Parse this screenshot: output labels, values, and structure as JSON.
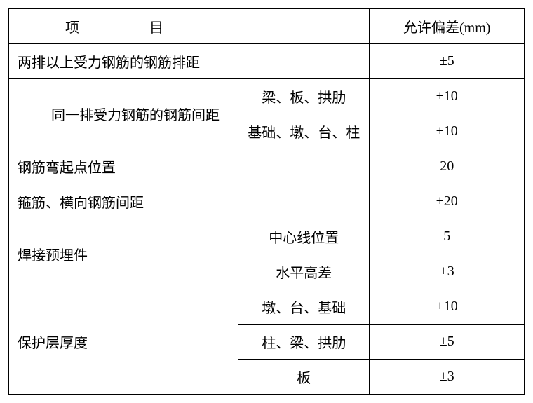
{
  "table": {
    "header": {
      "item_label": "项目",
      "tolerance_label": "允许偏差(mm)"
    },
    "rows": [
      {
        "item": "两排以上受力钢筋的钢筋排距",
        "tolerance": "±5"
      },
      {
        "item": "同一排受力钢筋的钢筋间距",
        "sub1": "梁、板、拱肋",
        "tol1": "±10",
        "sub2": "基础、墩、台、柱",
        "tol2": "±10"
      },
      {
        "item": "钢筋弯起点位置",
        "tolerance": "20"
      },
      {
        "item": "箍筋、横向钢筋间距",
        "tolerance": "±20"
      },
      {
        "item": "焊接预埋件",
        "sub1": "中心线位置",
        "tol1": "5",
        "sub2": "水平高差",
        "tol2": "±3"
      },
      {
        "item": "保护层厚度",
        "sub1": "墩、台、基础",
        "tol1": "±10",
        "sub2": "柱、梁、拱肋",
        "tol2": "±5",
        "sub3": "板",
        "tol3": "±3"
      }
    ],
    "styling": {
      "border_color": "#000000",
      "border_width": 1.5,
      "background_color": "#ffffff",
      "text_color": "#000000",
      "font_family": "SimSun",
      "cell_fontsize": 20,
      "columns": [
        {
          "name": "item-left",
          "width_pct": 44.5,
          "align": "left"
        },
        {
          "name": "item-mid",
          "width_pct": 25.5,
          "align": "center"
        },
        {
          "name": "tolerance",
          "width_pct": 30,
          "align": "center"
        }
      ]
    }
  }
}
